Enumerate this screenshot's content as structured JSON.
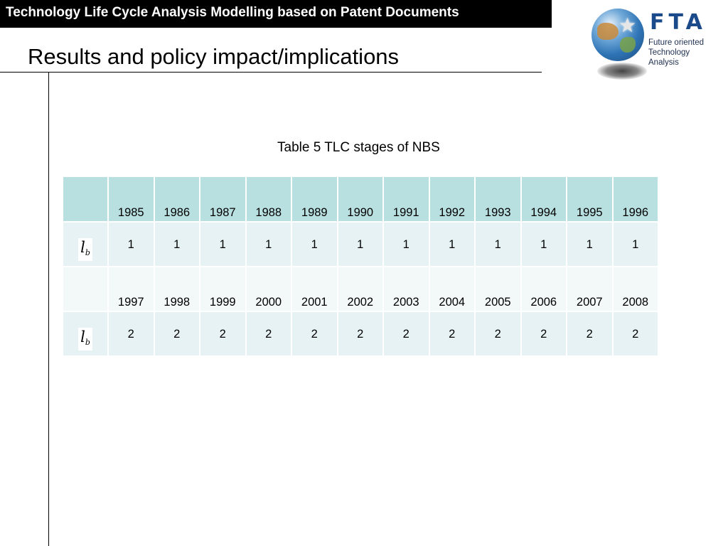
{
  "header": {
    "banner": "Technology Life Cycle Analysis Modelling based on Patent Documents",
    "title": "Results and policy impact/implications"
  },
  "logo": {
    "letters": "FTA",
    "line1": "Future oriented",
    "line2": "Technology",
    "line3": "Analysis",
    "icon": "globe-star-icon"
  },
  "table": {
    "caption": "Table 5 TLC stages of NBS",
    "symbol_main": "l",
    "symbol_sub": "b",
    "years_row1": [
      "1985",
      "1986",
      "1987",
      "1988",
      "1989",
      "1990",
      "1991",
      "1992",
      "1993",
      "1994",
      "1995",
      "1996"
    ],
    "values_row1": [
      "1",
      "1",
      "1",
      "1",
      "1",
      "1",
      "1",
      "1",
      "1",
      "1",
      "1",
      "1"
    ],
    "years_row2": [
      "1997",
      "1998",
      "1999",
      "2000",
      "2001",
      "2002",
      "2003",
      "2004",
      "2005",
      "2006",
      "2007",
      "2008"
    ],
    "values_row2": [
      "2",
      "2",
      "2",
      "2",
      "2",
      "2",
      "2",
      "2",
      "2",
      "2",
      "2",
      "2"
    ]
  },
  "colors": {
    "header_row": "#b9e0e1",
    "value_row": "#e6f2f3",
    "alt_row": "#f3f8f9",
    "logo_blue": "#1b4a8a"
  }
}
